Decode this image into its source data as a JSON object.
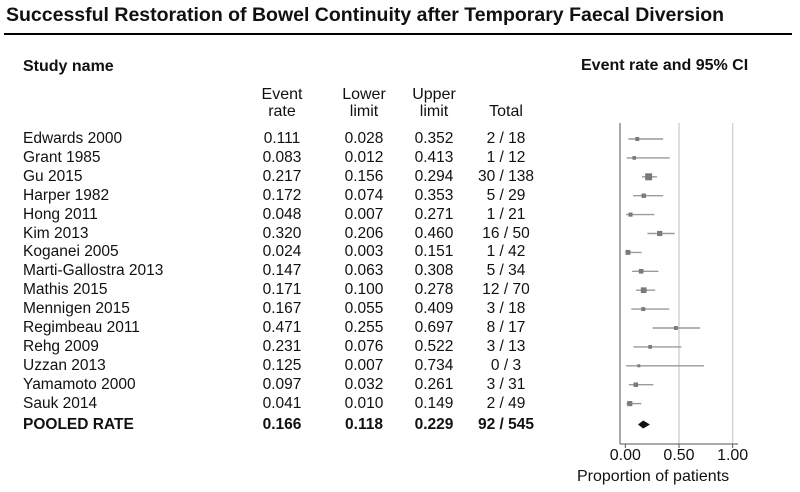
{
  "title": "Successful Restoration of Bowel Continuity after Temporary Faecal Diversion",
  "headers": {
    "study_name": "Study name",
    "event_rate": [
      "Event",
      "rate"
    ],
    "lower_limit": [
      "Lower",
      "limit"
    ],
    "upper_limit": [
      "Upper",
      "limit"
    ],
    "total": "Total",
    "plot_title": "Event rate and 95% CI"
  },
  "chart_data": {
    "type": "forest",
    "title": "Event rate and 95% CI",
    "xlabel": "Proportion of patients",
    "xlim": [
      -0.05,
      1.05
    ],
    "xticks": [
      0.0,
      0.5,
      1.0
    ],
    "xtick_labels": [
      "0.00",
      "0.50",
      "1.00"
    ],
    "gridlines": [
      0.5,
      1.0
    ],
    "studies": [
      {
        "name": "Edwards 2000",
        "rate": "0.111",
        "lower": "0.028",
        "upper": "0.352",
        "total": "2 / 18",
        "n": 18
      },
      {
        "name": "Grant 1985",
        "rate": "0.083",
        "lower": "0.012",
        "upper": "0.413",
        "total": "1 / 12",
        "n": 12
      },
      {
        "name": "Gu 2015",
        "rate": "0.217",
        "lower": "0.156",
        "upper": "0.294",
        "total": "30 / 138",
        "n": 138
      },
      {
        "name": "Harper 1982",
        "rate": "0.172",
        "lower": "0.074",
        "upper": "0.353",
        "total": "5 / 29",
        "n": 29
      },
      {
        "name": "Hong 2011",
        "rate": "0.048",
        "lower": "0.007",
        "upper": "0.271",
        "total": "1 / 21",
        "n": 21
      },
      {
        "name": "Kim 2013",
        "rate": "0.320",
        "lower": "0.206",
        "upper": "0.460",
        "total": "16 / 50",
        "n": 50
      },
      {
        "name": "Koganei 2005",
        "rate": "0.024",
        "lower": "0.003",
        "upper": "0.151",
        "total": "1 / 42",
        "n": 42
      },
      {
        "name": "Marti-Gallostra 2013",
        "rate": "0.147",
        "lower": "0.063",
        "upper": "0.308",
        "total": "5 / 34",
        "n": 34
      },
      {
        "name": "Mathis 2015",
        "rate": "0.171",
        "lower": "0.100",
        "upper": "0.278",
        "total": "12 / 70",
        "n": 70
      },
      {
        "name": "Mennigen 2015",
        "rate": "0.167",
        "lower": "0.055",
        "upper": "0.409",
        "total": "3 / 18",
        "n": 18
      },
      {
        "name": "Regimbeau 2011",
        "rate": "0.471",
        "lower": "0.255",
        "upper": "0.697",
        "total": "8 / 17",
        "n": 17
      },
      {
        "name": "Rehg 2009",
        "rate": "0.231",
        "lower": "0.076",
        "upper": "0.522",
        "total": "3 / 13",
        "n": 13
      },
      {
        "name": "Uzzan 2013",
        "rate": "0.125",
        "lower": "0.007",
        "upper": "0.734",
        "total": "0 / 3",
        "n": 3
      },
      {
        "name": "Yamamoto 2000",
        "rate": "0.097",
        "lower": "0.032",
        "upper": "0.261",
        "total": "3 / 31",
        "n": 31
      },
      {
        "name": "Sauk 2014",
        "rate": "0.041",
        "lower": "0.010",
        "upper": "0.149",
        "total": "2 / 49",
        "n": 49
      }
    ],
    "pooled": {
      "name": "POOLED RATE",
      "rate": "0.166",
      "lower": "0.118",
      "upper": "0.229",
      "total": "92 / 545"
    },
    "colors": {
      "marker": "#7a7a7a",
      "ci_line": "#9a9a9a",
      "pooled": "#111111",
      "axis": "#555555",
      "grid": "#d4d4d4"
    }
  }
}
